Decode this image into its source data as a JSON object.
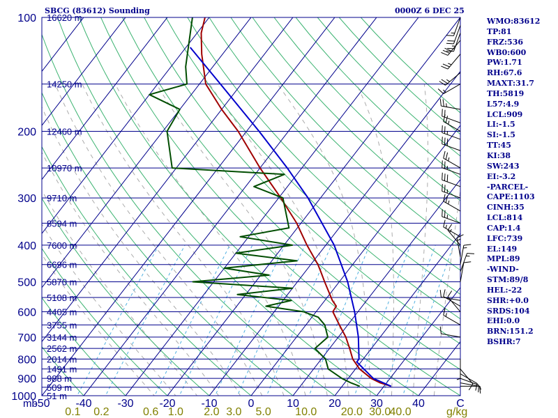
{
  "header": {
    "station": "SBCG (83612) Sounding",
    "time": "0000Z  6 DEC 25"
  },
  "stats": [
    "WMO:83612",
    "TP:81",
    "FRZ:536",
    "WB0:600",
    "PW:1.71",
    "RH:67.6",
    "MAXT:31.7",
    "TH:5819",
    "L57:4.9",
    "LCL:909",
    "LI:-1.5",
    "SI:-1.5",
    "TT:45",
    "KI:38",
    "SW:243",
    "EI:-3.2",
    "-PARCEL-",
    "CAPE:1103",
    "CINH:35",
    "LCL:814",
    "CAP:1.4",
    "LFC:739",
    "EL:149",
    "MPL:89",
    "-WIND-",
    "STM:89/8",
    "HEL:-22",
    "SHR:+0.0",
    "SRDS:104",
    "EHI:0.0",
    "BRN:151.2",
    "BSHR:7"
  ],
  "colors": {
    "background": "#ffffff",
    "frame": "#00008b",
    "isobars": "#00008b",
    "isotherms": "#00008b",
    "dry_adiabats": "#3cb371",
    "moist_adiabats": "#ababab",
    "mixing_ratio": "#4fb0e0",
    "temperature": "#a00000",
    "dewpoint": "#004d00",
    "parcel": "#0000cc",
    "winds": "#000000",
    "temp_ticks": "#00008b",
    "mixing_labels": "#808000"
  },
  "chart_data": {
    "type": "skew-t",
    "pressure_axis": {
      "label": "mb",
      "ticks": [
        100,
        200,
        300,
        400,
        500,
        600,
        700,
        800,
        900,
        1000
      ],
      "range": [
        1000,
        100
      ],
      "scale": "log"
    },
    "temperature_axis": {
      "ticks": [
        -50,
        -40,
        -30,
        -20,
        -10,
        0,
        10,
        20,
        30,
        40,
        50
      ],
      "tick_labels": [
        "-50",
        "-40",
        "-30",
        "-20",
        "-10",
        "0",
        "10",
        "20",
        "30",
        "40",
        "C"
      ]
    },
    "mixing_ratio_axis": {
      "unit": "g/kg",
      "ticks": [
        {
          "label": "0.1",
          "w": 0.1
        },
        {
          "label": "0.2",
          "w": 0.2
        },
        {
          "label": "0.6",
          "w": 0.6
        },
        {
          "label": "1.0",
          "w": 1.0
        },
        {
          "label": "2.0",
          "w": 2.0
        },
        {
          "label": "3.0",
          "w": 3.0
        },
        {
          "label": "5.0",
          "w": 5.0
        },
        {
          "label": "10.0",
          "w": 10.0
        },
        {
          "label": "20.0",
          "w": 20.0
        },
        {
          "label": "30.0",
          "w": 30.0
        },
        {
          "label": "40.0",
          "w": 40.0
        }
      ]
    },
    "height_labels": [
      {
        "p": 100,
        "label": "16620 m"
      },
      {
        "p": 150,
        "label": "14250 m"
      },
      {
        "p": 200,
        "label": "12460 m"
      },
      {
        "p": 250,
        "label": "10970 m"
      },
      {
        "p": 300,
        "label": "9710 m"
      },
      {
        "p": 350,
        "label": "8594 m"
      },
      {
        "p": 400,
        "label": "7600 m"
      },
      {
        "p": 450,
        "label": "6696 m"
      },
      {
        "p": 500,
        "label": "5870 m"
      },
      {
        "p": 550,
        "label": "5108 m"
      },
      {
        "p": 600,
        "label": "4405 m"
      },
      {
        "p": 650,
        "label": "3755 m"
      },
      {
        "p": 700,
        "label": "3144 m"
      },
      {
        "p": 750,
        "label": "2562 m"
      },
      {
        "p": 800,
        "label": "2014 m"
      },
      {
        "p": 850,
        "label": "1491 m"
      },
      {
        "p": 900,
        "label": "988 m"
      },
      {
        "p": 950,
        "label": "509 m"
      },
      {
        "p": 1000,
        "label": "51 m"
      }
    ],
    "series": [
      {
        "key": "temperature",
        "points": [
          {
            "p": 944,
            "t": 31.7
          },
          {
            "p": 925,
            "t": 28.5
          },
          {
            "p": 900,
            "t": 25.5
          },
          {
            "p": 850,
            "t": 21.0
          },
          {
            "p": 800,
            "t": 17.5
          },
          {
            "p": 750,
            "t": 14.8
          },
          {
            "p": 700,
            "t": 11.8
          },
          {
            "p": 650,
            "t": 8.0
          },
          {
            "p": 600,
            "t": 4.0
          },
          {
            "p": 580,
            "t": 3.8
          },
          {
            "p": 560,
            "t": 1.8
          },
          {
            "p": 500,
            "t": -3.5
          },
          {
            "p": 470,
            "t": -6.3
          },
          {
            "p": 450,
            "t": -8.3
          },
          {
            "p": 400,
            "t": -14.5
          },
          {
            "p": 350,
            "t": -21.0
          },
          {
            "p": 300,
            "t": -29.5
          },
          {
            "p": 250,
            "t": -40.0
          },
          {
            "p": 200,
            "t": -52.0
          },
          {
            "p": 175,
            "t": -60.0
          },
          {
            "p": 150,
            "t": -68.5
          },
          {
            "p": 125,
            "t": -75.0
          },
          {
            "p": 110,
            "t": -79.0
          },
          {
            "p": 100,
            "t": -81.0
          }
        ]
      },
      {
        "key": "dewpoint",
        "points": [
          {
            "p": 944,
            "t": 24.2
          },
          {
            "p": 925,
            "t": 21.5
          },
          {
            "p": 900,
            "t": 18.5
          },
          {
            "p": 850,
            "t": 13.5
          },
          {
            "p": 800,
            "t": 11.0
          },
          {
            "p": 750,
            "t": 6.5
          },
          {
            "p": 700,
            "t": 7.5
          },
          {
            "p": 650,
            "t": 4.5
          },
          {
            "p": 620,
            "t": 1.5
          },
          {
            "p": 600,
            "t": -3.0
          },
          {
            "p": 580,
            "t": -13.0
          },
          {
            "p": 560,
            "t": -8.0
          },
          {
            "p": 540,
            "t": -22.0
          },
          {
            "p": 520,
            "t": -10.0
          },
          {
            "p": 500,
            "t": -35.0
          },
          {
            "p": 480,
            "t": -18.0
          },
          {
            "p": 460,
            "t": -30.0
          },
          {
            "p": 440,
            "t": -14.0
          },
          {
            "p": 420,
            "t": -30.0
          },
          {
            "p": 400,
            "t": -18.0
          },
          {
            "p": 380,
            "t": -32.0
          },
          {
            "p": 360,
            "t": -22.0
          },
          {
            "p": 300,
            "t": -29.0
          },
          {
            "p": 280,
            "t": -38.0
          },
          {
            "p": 260,
            "t": -33.0
          },
          {
            "p": 250,
            "t": -61.0
          },
          {
            "p": 200,
            "t": -69.0
          },
          {
            "p": 175,
            "t": -70.0
          },
          {
            "p": 160,
            "t": -80.0
          },
          {
            "p": 150,
            "t": -73.0
          },
          {
            "p": 135,
            "t": -76.5
          },
          {
            "p": 100,
            "t": -84.0
          }
        ]
      },
      {
        "key": "parcel",
        "points": [
          {
            "p": 944,
            "t": 31.7
          },
          {
            "p": 900,
            "t": 26.0
          },
          {
            "p": 814,
            "t": 19.0
          },
          {
            "p": 800,
            "t": 19.0
          },
          {
            "p": 700,
            "t": 14.8
          },
          {
            "p": 600,
            "t": 9.2
          },
          {
            "p": 500,
            "t": 2.0
          },
          {
            "p": 400,
            "t": -8.0
          },
          {
            "p": 300,
            "t": -23.0
          },
          {
            "p": 250,
            "t": -33.5
          },
          {
            "p": 200,
            "t": -47.0
          },
          {
            "p": 150,
            "t": -65.0
          },
          {
            "p": 120,
            "t": -79.0
          }
        ]
      }
    ],
    "winds": [
      {
        "p": 944,
        "dir": 90,
        "spd": 5
      },
      {
        "p": 925,
        "dir": 100,
        "spd": 10
      },
      {
        "p": 900,
        "dir": 110,
        "spd": 10
      },
      {
        "p": 875,
        "dir": 120,
        "spd": 10
      },
      {
        "p": 850,
        "dir": 140,
        "spd": 10
      },
      {
        "p": 800,
        "dir": 180,
        "spd": 5
      },
      {
        "p": 700,
        "dir": 280,
        "spd": 10
      },
      {
        "p": 650,
        "dir": 300,
        "spd": 15
      },
      {
        "p": 600,
        "dir": 320,
        "spd": 10
      },
      {
        "p": 580,
        "dir": 300,
        "spd": 10
      },
      {
        "p": 560,
        "dir": 280,
        "spd": 10
      },
      {
        "p": 500,
        "dir": 10,
        "spd": 10
      },
      {
        "p": 470,
        "dir": 20,
        "spd": 15
      },
      {
        "p": 450,
        "dir": 10,
        "spd": 15
      },
      {
        "p": 430,
        "dir": 350,
        "spd": 15
      },
      {
        "p": 400,
        "dir": 320,
        "spd": 15
      },
      {
        "p": 380,
        "dir": 300,
        "spd": 15
      },
      {
        "p": 350,
        "dir": 290,
        "spd": 25
      },
      {
        "p": 325,
        "dir": 300,
        "spd": 25
      },
      {
        "p": 300,
        "dir": 290,
        "spd": 25
      },
      {
        "p": 280,
        "dir": 290,
        "spd": 30
      },
      {
        "p": 260,
        "dir": 290,
        "spd": 25
      },
      {
        "p": 250,
        "dir": 300,
        "spd": 25
      },
      {
        "p": 225,
        "dir": 290,
        "spd": 30
      },
      {
        "p": 210,
        "dir": 290,
        "spd": 25
      },
      {
        "p": 200,
        "dir": 300,
        "spd": 25
      },
      {
        "p": 190,
        "dir": 290,
        "spd": 20
      },
      {
        "p": 175,
        "dir": 280,
        "spd": 25
      },
      {
        "p": 150,
        "dir": 240,
        "spd": 15
      },
      {
        "p": 140,
        "dir": 230,
        "spd": 25
      },
      {
        "p": 125,
        "dir": 220,
        "spd": 25
      },
      {
        "p": 115,
        "dir": 220,
        "spd": 30
      },
      {
        "p": 110,
        "dir": 200,
        "spd": 25
      },
      {
        "p": 105,
        "dir": 200,
        "spd": 20
      },
      {
        "p": 100,
        "dir": 200,
        "spd": 15
      }
    ],
    "grid": true
  }
}
